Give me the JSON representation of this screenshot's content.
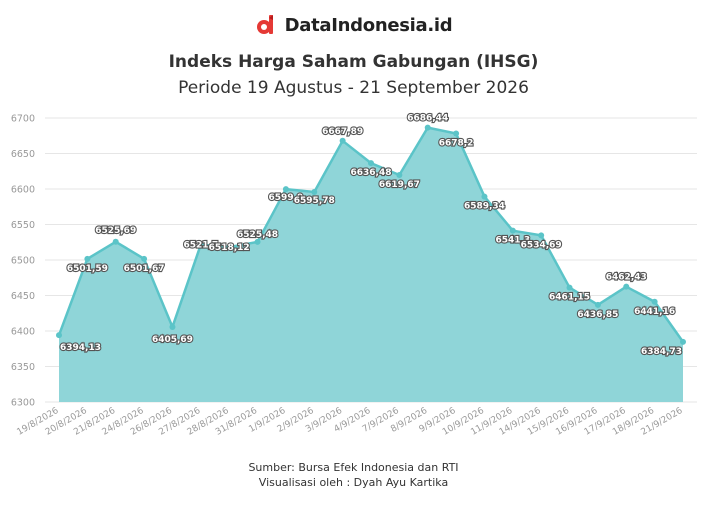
{
  "brand": {
    "name": "DataIndonesia.id",
    "logo_icon": "dataindonesia-logo-icon",
    "accent": "#e53935"
  },
  "header": {
    "title": "Indeks Harga Saham Gabungan (IHSG)",
    "subtitle": "Periode 19 Agustus - 21 September 2026"
  },
  "footer": {
    "source": "Sumber: Bursa Efek Indonesia dan RTI",
    "credit": "Visualisasi oleh : Dyah Ayu Kartika"
  },
  "chart_data": {
    "type": "area",
    "categories": [
      "19/8/2026",
      "20/8/2026",
      "21/8/2026",
      "24/8/2026",
      "26/8/2026",
      "27/8/2026",
      "28/8/2026",
      "31/8/2026",
      "1/9/2026",
      "2/9/2026",
      "3/9/2026",
      "4/9/2026",
      "7/9/2026",
      "8/9/2026",
      "9/9/2026",
      "10/9/2026",
      "11/9/2026",
      "14/9/2026",
      "15/9/2026",
      "16/9/2026",
      "17/9/2026",
      "18/9/2026",
      "21/9/2026"
    ],
    "values": [
      6394.13,
      6501.59,
      6525.69,
      6501.67,
      6405.69,
      6521.7,
      6518.12,
      6525.48,
      6599.9,
      6595.78,
      6667.89,
      6636.48,
      6619.67,
      6686.44,
      6678.2,
      6589.34,
      6541.3,
      6534.69,
      6461.15,
      6436.85,
      6462.43,
      6441.16,
      6384.73
    ],
    "labels": [
      "6394,13",
      "6501,59",
      "6525,69",
      "6501,67",
      "6405,69",
      "6521,7",
      "6518,12",
      "6525,48",
      "6599,9",
      "6595,78",
      "6667,89",
      "6636,48",
      "6619,67",
      "6686,44",
      "6678,2",
      "6589,34",
      "6541,3",
      "6534,69",
      "6461,15",
      "6436,85",
      "6462,43",
      "6441,16",
      "6384,73"
    ],
    "yticks": [
      "6300",
      "6350",
      "6400",
      "6450",
      "6500",
      "6550",
      "6600",
      "6650",
      "6700"
    ],
    "ylim": [
      6300,
      6700
    ],
    "grid": true,
    "colors": {
      "line": "#5bc4c8",
      "fill": "#8fd5d8",
      "grid": "#e6e6e6"
    }
  }
}
